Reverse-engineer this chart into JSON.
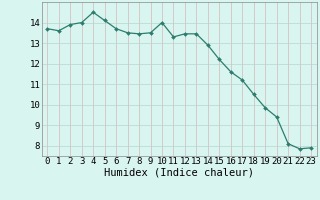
{
  "x": [
    0,
    1,
    2,
    3,
    4,
    5,
    6,
    7,
    8,
    9,
    10,
    11,
    12,
    13,
    14,
    15,
    16,
    17,
    18,
    19,
    20,
    21,
    22,
    23
  ],
  "y": [
    13.7,
    13.6,
    13.9,
    14.0,
    14.5,
    14.1,
    13.7,
    13.5,
    13.45,
    13.5,
    14.0,
    13.3,
    13.45,
    13.45,
    12.9,
    12.2,
    11.6,
    11.2,
    10.5,
    9.85,
    9.4,
    8.1,
    7.85,
    7.9
  ],
  "line_color": "#2d7d6e",
  "marker": "D",
  "marker_size": 2.0,
  "bg_color": "#d8f5f0",
  "grid_v_color": "#d4b8b8",
  "grid_h_color": "#b8d4d0",
  "xlabel": "Humidex (Indice chaleur)",
  "xlabel_fontsize": 7.5,
  "tick_fontsize": 6.5,
  "xlim": [
    -0.5,
    23.5
  ],
  "ylim": [
    7.5,
    15.0
  ],
  "yticks": [
    8,
    9,
    10,
    11,
    12,
    13,
    14
  ],
  "xticks": [
    0,
    1,
    2,
    3,
    4,
    5,
    6,
    7,
    8,
    9,
    10,
    11,
    12,
    13,
    14,
    15,
    16,
    17,
    18,
    19,
    20,
    21,
    22,
    23
  ]
}
